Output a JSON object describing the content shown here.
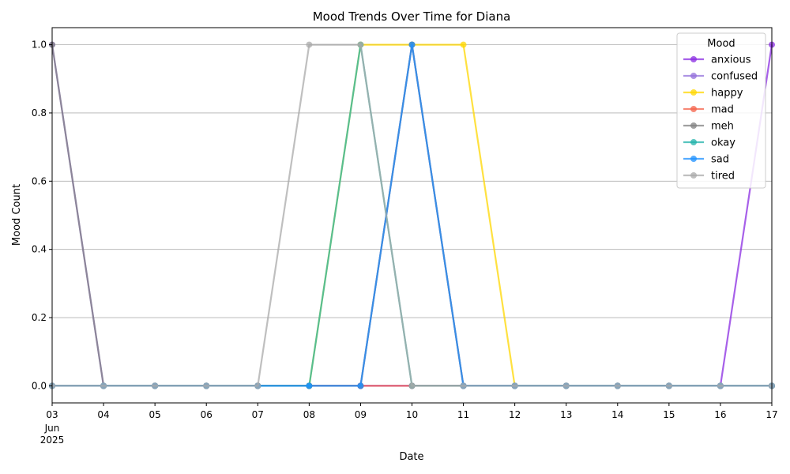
{
  "chart_data": {
    "type": "line",
    "title": "Mood Trends Over Time for Diana",
    "xlabel": "Date",
    "ylabel": "Mood Count",
    "x": [
      "2025-06-03",
      "2025-06-04",
      "2025-06-05",
      "2025-06-06",
      "2025-06-07",
      "2025-06-08",
      "2025-06-09",
      "2025-06-10",
      "2025-06-11",
      "2025-06-12",
      "2025-06-13",
      "2025-06-14",
      "2025-06-15",
      "2025-06-16",
      "2025-06-17"
    ],
    "x_tick_labels": [
      "03",
      "04",
      "05",
      "06",
      "07",
      "08",
      "09",
      "10",
      "11",
      "12",
      "13",
      "14",
      "15",
      "16",
      "17"
    ],
    "x_sub_labels": [
      "Jun",
      "2025"
    ],
    "ylim": [
      -0.05,
      1.05
    ],
    "y_ticks": [
      "0.0",
      "0.2",
      "0.4",
      "0.6",
      "0.8",
      "1.0"
    ],
    "grid": "y",
    "legend_title": "Mood",
    "legend_position": "top-right",
    "series": [
      {
        "name": "anxious",
        "color": "#8a2be2",
        "values": [
          0,
          0,
          0,
          0,
          0,
          0,
          0,
          0,
          0,
          0,
          0,
          0,
          0,
          0,
          1
        ]
      },
      {
        "name": "confused",
        "color": "#9370db",
        "values": [
          1,
          0,
          0,
          0,
          0,
          0,
          0,
          1,
          0,
          0,
          0,
          0,
          0,
          0,
          0
        ]
      },
      {
        "name": "happy",
        "color": "#ffd700",
        "values": [
          0,
          0,
          0,
          0,
          0,
          0,
          1,
          1,
          1,
          0,
          0,
          0,
          0,
          0,
          0
        ]
      },
      {
        "name": "mad",
        "color": "#f4614a",
        "values": [
          0,
          0,
          0,
          0,
          0,
          0,
          0,
          0,
          0,
          0,
          0,
          0,
          0,
          0,
          0
        ]
      },
      {
        "name": "meh",
        "color": "#808080",
        "values": [
          1,
          0,
          0,
          0,
          0,
          0,
          0,
          1,
          0,
          0,
          0,
          0,
          0,
          0,
          0
        ]
      },
      {
        "name": "okay",
        "color": "#20b2aa",
        "values": [
          0,
          0,
          0,
          0,
          0,
          0,
          1,
          0,
          0,
          0,
          0,
          0,
          0,
          0,
          0
        ]
      },
      {
        "name": "sad",
        "color": "#1e90ff",
        "values": [
          0,
          0,
          0,
          0,
          0,
          0,
          0,
          1,
          0,
          0,
          0,
          0,
          0,
          0,
          0
        ]
      },
      {
        "name": "tired",
        "color": "#a9a9a9",
        "values": [
          0,
          0,
          0,
          0,
          0,
          1,
          1,
          0,
          0,
          0,
          0,
          0,
          0,
          0,
          0
        ]
      }
    ]
  }
}
